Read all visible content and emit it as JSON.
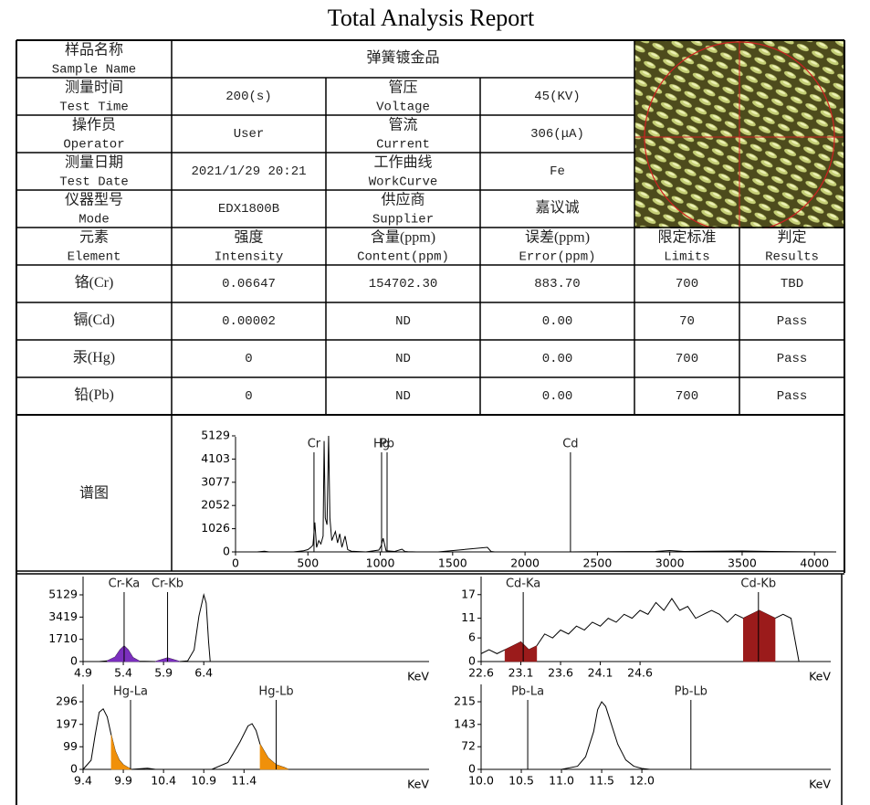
{
  "title": "Total Analysis Report",
  "info_rows": [
    [
      [
        "样品名称",
        "Sample Name"
      ],
      "弹簧镀金品"
    ],
    [
      [
        "测量时间",
        "Test Time"
      ],
      "200(s)",
      [
        "管压",
        "Voltage"
      ],
      "45(KV)"
    ],
    [
      [
        "操作员",
        "Operator"
      ],
      "User",
      [
        "管流",
        "Current"
      ],
      "306(μA)"
    ],
    [
      [
        "测量日期",
        "Test Date"
      ],
      "2021/1/29 20:21",
      [
        "工作曲线",
        "WorkCurve"
      ],
      "Fe"
    ],
    [
      [
        "仪器型号",
        "Mode"
      ],
      "EDX1800B",
      [
        "供应商",
        "Supplier"
      ],
      "嘉议诚"
    ]
  ],
  "results": {
    "header": [
      [
        "元素",
        "Element"
      ],
      [
        "强度",
        "Intensity"
      ],
      [
        "含量(ppm)",
        "Content(ppm)"
      ],
      [
        "误差(ppm)",
        "Error(ppm)"
      ],
      [
        "限定标准",
        "Limits"
      ],
      [
        "判定",
        "Results"
      ]
    ],
    "rows": [
      [
        "铬(Cr)",
        "0.06647",
        "154702.30",
        "883.70",
        "700",
        "TBD"
      ],
      [
        "镉(Cd)",
        "0.00002",
        "ND",
        "0.00",
        "70",
        "Pass"
      ],
      [
        "汞(Hg)",
        "0",
        "ND",
        "0.00",
        "700",
        "Pass"
      ],
      [
        "铅(Pb)",
        "0",
        "ND",
        "0.00",
        "700",
        "Pass"
      ]
    ]
  },
  "spectrum_label": "谱图",
  "spectrum": {
    "type": "line",
    "xlim": [
      0,
      4150
    ],
    "ylim": [
      0,
      5129
    ],
    "xticks": [
      0,
      500,
      1000,
      1500,
      2000,
      2500,
      3000,
      3500,
      4000
    ],
    "yticks": [
      0,
      1026,
      2052,
      3077,
      4103,
      5129
    ],
    "series": [
      {
        "color": "#000000",
        "x": [
          0,
          150,
          200,
          230,
          260,
          400,
          470,
          500,
          520,
          535,
          548,
          560,
          575,
          590,
          605,
          612,
          620,
          632,
          643,
          652,
          665,
          690,
          705,
          720,
          735,
          757,
          775,
          800,
          900,
          990,
          1005,
          1020,
          1040,
          1100,
          1150,
          1170,
          1190,
          1250,
          1400,
          1740,
          1765,
          1790,
          1900,
          2300,
          2900,
          3000,
          3100,
          3500,
          3600,
          3700,
          4150
        ],
        "values": [
          0,
          0,
          30,
          0,
          0,
          0,
          50,
          100,
          200,
          300,
          1300,
          200,
          500,
          350,
          700,
          4900,
          1500,
          1200,
          5129,
          1500,
          500,
          900,
          400,
          800,
          200,
          700,
          100,
          30,
          0,
          80,
          250,
          600,
          50,
          20,
          120,
          20,
          10,
          0,
          0,
          200,
          20,
          0,
          0,
          0,
          20,
          60,
          20,
          40,
          30,
          20,
          0
        ]
      }
    ],
    "peaks": [
      {
        "name": "Cr",
        "color": "#9b30d0",
        "x": 542
      },
      {
        "name": "Hg",
        "color": "#f08a00",
        "x": 1009
      },
      {
        "name": "Pb",
        "color": "#22c8e8",
        "x": 1047
      },
      {
        "name": "Cd",
        "color": "#a01010",
        "x": 2314
      }
    ]
  },
  "zooms": [
    {
      "type": "line",
      "xlabel": "KeV",
      "xlim": [
        4.9,
        9.2
      ],
      "ylim": [
        0,
        5129
      ],
      "xticks": [
        4.9,
        5.4,
        5.9,
        6.4
      ],
      "yticks": [
        0,
        1710,
        3419,
        5129
      ],
      "series": [
        {
          "color": "#000000",
          "x": [
            4.9,
            5.1,
            5.2,
            5.3,
            5.36,
            5.41,
            5.46,
            5.52,
            5.6,
            5.8,
            5.88,
            5.95,
            6.02,
            6.1,
            6.2,
            6.28,
            6.34,
            6.4,
            6.43,
            6.46,
            6.48
          ],
          "values": [
            0,
            0,
            50,
            350,
            900,
            1200,
            900,
            300,
            30,
            0,
            150,
            280,
            150,
            0,
            50,
            900,
            3500,
            5129,
            4500,
            1500,
            0
          ]
        },
        {
          "color": "#7b2fbe",
          "fill": true,
          "x": [
            5.2,
            5.3,
            5.36,
            5.41,
            5.46,
            5.52,
            5.6
          ],
          "values": [
            50,
            350,
            900,
            1200,
            900,
            300,
            30
          ]
        },
        {
          "color": "#7b2fbe",
          "fill": true,
          "x": [
            5.8,
            5.88,
            5.95,
            6.02,
            6.1
          ],
          "values": [
            0,
            150,
            280,
            150,
            0
          ]
        }
      ],
      "peaks": [
        {
          "name": "Cr-Ka",
          "color": "#9b30d0",
          "x": 5.41
        },
        {
          "name": "Cr-Kb",
          "color": "#9b30d0",
          "x": 5.95
        }
      ]
    },
    {
      "type": "line",
      "xlabel": "KeV",
      "xlim": [
        22.6,
        27.0
      ],
      "ylim": [
        0,
        19.5
      ],
      "xticks": [
        22.6,
        23.1,
        23.6,
        24.1,
        24.6
      ],
      "yticks": [
        0,
        6,
        11,
        17
      ],
      "series": [
        {
          "color": "#000000",
          "x": [
            22.6,
            22.7,
            22.8,
            22.9,
            23.0,
            23.1,
            23.2,
            23.3,
            23.4,
            23.5,
            23.6,
            23.7,
            23.8,
            23.9,
            24.0,
            24.1,
            24.2,
            24.3,
            24.4,
            24.5,
            24.6,
            24.7,
            24.8,
            24.9,
            25.0,
            25.1,
            25.2,
            25.3,
            25.4,
            25.5,
            25.6,
            25.7,
            25.8,
            25.9,
            26.0,
            26.1,
            26.2,
            26.3,
            26.4,
            26.5,
            26.6
          ],
          "values": [
            2,
            3,
            2,
            3,
            4,
            5,
            3,
            4,
            7,
            6,
            8,
            7,
            9,
            8,
            10,
            9,
            11,
            10,
            12,
            11,
            13,
            12,
            15,
            13,
            16,
            13,
            14,
            11,
            12,
            13,
            12,
            10,
            12,
            11,
            12,
            13,
            12,
            11,
            12,
            11,
            0
          ]
        },
        {
          "color": "#9b1b1b",
          "fill": true,
          "x": [
            22.9,
            23.0,
            23.1,
            23.2,
            23.3
          ],
          "values": [
            3,
            4,
            5,
            3,
            4
          ]
        },
        {
          "color": "#9b1b1b",
          "fill": true,
          "x": [
            25.9,
            26.0,
            26.1,
            26.2,
            26.3
          ],
          "values": [
            11,
            12,
            13,
            12,
            11
          ]
        }
      ],
      "peaks": [
        {
          "name": "Cd-Ka",
          "color": "#a01010",
          "x": 23.13
        },
        {
          "name": "Cd-Kb",
          "color": "#a01010",
          "x": 26.09
        }
      ]
    },
    {
      "type": "line",
      "xlabel": "KeV",
      "xlim": [
        9.4,
        13.7
      ],
      "ylim": [
        0,
        340
      ],
      "xticks": [
        9.4,
        9.9,
        10.4,
        10.9,
        11.4
      ],
      "yticks": [
        0,
        99,
        197,
        296
      ],
      "series": [
        {
          "color": "#000000",
          "x": [
            9.4,
            9.5,
            9.55,
            9.6,
            9.65,
            9.7,
            9.75,
            9.8,
            9.85,
            9.9,
            9.95,
            10.0,
            10.2,
            10.3,
            10.5,
            10.8,
            11.0,
            11.2,
            11.35,
            11.45,
            11.5,
            11.55,
            11.6,
            11.7,
            11.8,
            11.9,
            11.95,
            12.1
          ],
          "values": [
            0,
            40,
            150,
            250,
            265,
            230,
            150,
            80,
            40,
            20,
            10,
            0,
            5,
            0,
            0,
            0,
            0,
            30,
            120,
            190,
            200,
            170,
            110,
            50,
            20,
            8,
            0,
            0
          ]
        },
        {
          "color": "#f0900a",
          "fill": true,
          "x": [
            9.75,
            9.8,
            9.85,
            9.9,
            9.95,
            10.0
          ],
          "values": [
            150,
            80,
            40,
            20,
            10,
            0
          ]
        },
        {
          "color": "#f0900a",
          "fill": true,
          "x": [
            11.6,
            11.7,
            11.8,
            11.9,
            11.95
          ],
          "values": [
            110,
            50,
            20,
            8,
            0
          ]
        }
      ],
      "peaks": [
        {
          "name": "Hg-La",
          "color": "#f08a00",
          "x": 9.99
        },
        {
          "name": "Hg-Lb",
          "color": "#f08a00",
          "x": 11.8
        }
      ]
    },
    {
      "type": "line",
      "xlabel": "KeV",
      "xlim": [
        10.0,
        14.35
      ],
      "ylim": [
        0,
        247
      ],
      "xticks": [
        {
          "value": 10,
          "label": "10.0"
        },
        10.5,
        {
          "value": 11,
          "label": "11.0"
        },
        11.5,
        {
          "value": 12,
          "label": "12.0"
        }
      ],
      "yticks": [
        0,
        72,
        143,
        215
      ],
      "series": [
        {
          "color": "#000000",
          "x": [
            10.0,
            10.5,
            11.0,
            11.2,
            11.3,
            11.4,
            11.45,
            11.5,
            11.55,
            11.6,
            11.7,
            11.8,
            11.9,
            12.0,
            12.1,
            13.0
          ],
          "values": [
            0,
            0,
            0,
            10,
            40,
            120,
            190,
            215,
            200,
            160,
            80,
            30,
            10,
            3,
            0,
            0
          ]
        }
      ],
      "peaks": [
        {
          "name": "Pb-La",
          "color": "#22c8e8",
          "x": 10.58
        },
        {
          "name": "Pb-Lb",
          "color": "#22c8e8",
          "x": 12.61
        }
      ]
    }
  ]
}
